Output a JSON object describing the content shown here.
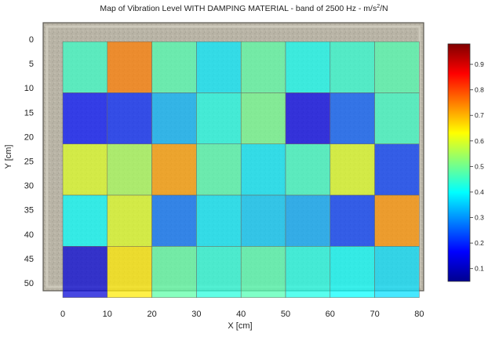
{
  "chart_data": {
    "type": "heatmap",
    "title_main": "Map of Vibration Level WITH DAMPING MATERIAL - band of 2500 Hz - m/s",
    "title_sup": "2",
    "title_tail": "/N",
    "xlabel": "X [cm]",
    "ylabel": "Y [cm]",
    "xlim": [
      -5,
      85
    ],
    "ylim": [
      -2,
      54
    ],
    "x_ticks": [
      0,
      10,
      20,
      30,
      40,
      50,
      60,
      70,
      80
    ],
    "y_ticks": [
      0,
      5,
      10,
      15,
      20,
      25,
      30,
      35,
      40,
      45,
      50
    ],
    "cell_x_edges": [
      0,
      10,
      20,
      30,
      40,
      50,
      60,
      70,
      80
    ],
    "cell_y_edges": [
      0.5,
      11,
      21.5,
      32,
      42.5,
      53
    ],
    "values": [
      [
        0.45,
        0.75,
        0.47,
        0.38,
        0.48,
        0.41,
        0.44,
        0.47
      ],
      [
        0.18,
        0.2,
        0.33,
        0.42,
        0.5,
        0.15,
        0.25,
        0.45
      ],
      [
        0.6,
        0.55,
        0.72,
        0.47,
        0.38,
        0.45,
        0.6,
        0.22
      ],
      [
        0.4,
        0.6,
        0.27,
        0.38,
        0.35,
        0.32,
        0.22,
        0.73
      ],
      [
        0.13,
        0.65,
        0.48,
        0.43,
        0.47,
        0.42,
        0.4,
        0.37
      ]
    ],
    "colorbar": {
      "range": [
        0.05,
        0.98
      ],
      "ticks": [
        0.1,
        0.2,
        0.3,
        0.4,
        0.5,
        0.6,
        0.7,
        0.8,
        0.9
      ],
      "colormap": "jet"
    },
    "grid": false
  }
}
